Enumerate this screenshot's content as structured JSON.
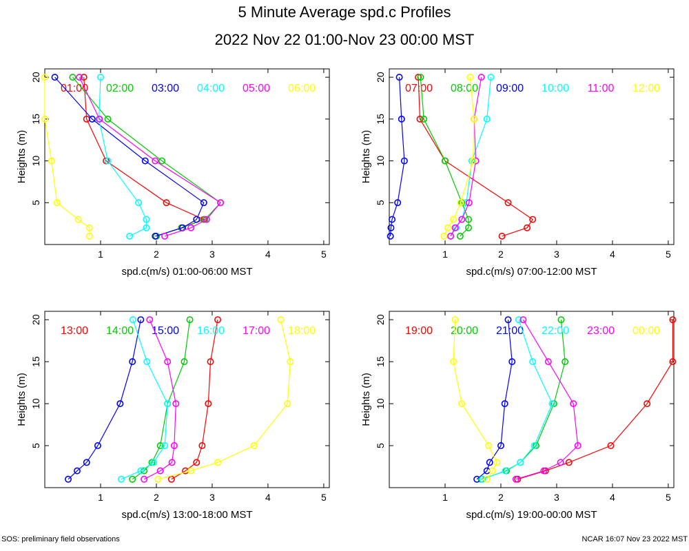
{
  "title": "5 Minute Average spd.c Profiles",
  "subtitle": "2022 Nov 22 01:00-Nov 23 00:00 MST",
  "footer_left": "SOS: preliminary field observations",
  "footer_right": "NCAR 16:07 Nov 23 2022 MST",
  "chart_data": [
    {
      "type": "line",
      "xlabel": "spd.c(m/s) 01:00-06:00 MST",
      "ylabel": "Heights (m)",
      "xlim": [
        0,
        5.1
      ],
      "ylim": [
        0,
        21
      ],
      "xticks": [
        "1",
        "2",
        "3",
        "4",
        "5"
      ],
      "yticks": [
        "5",
        "10",
        "15",
        "20"
      ],
      "heights": [
        1,
        2,
        3,
        5,
        10,
        15,
        20
      ],
      "series": [
        {
          "name": "01:00",
          "color": "#ff0000",
          "values": [
            2.0,
            2.45,
            2.85,
            2.18,
            1.1,
            0.75,
            0.7
          ]
        },
        {
          "name": "02:00",
          "color": "#00cc00",
          "values": [
            2.0,
            2.45,
            2.87,
            3.15,
            2.1,
            1.13,
            0.5
          ]
        },
        {
          "name": "03:00",
          "color": "#0000ff",
          "values": [
            1.98,
            2.47,
            2.72,
            2.85,
            1.8,
            0.85,
            0.18
          ]
        },
        {
          "name": "04:00",
          "color": "#00ffff",
          "values": [
            1.52,
            1.82,
            1.82,
            1.68,
            1.13,
            0.97,
            1.0
          ]
        },
        {
          "name": "05:00",
          "color": "#ff00ff",
          "values": [
            2.15,
            2.62,
            2.9,
            3.15,
            1.98,
            0.98,
            0.62
          ]
        },
        {
          "name": "06:00",
          "color": "#ffff00",
          "values": [
            0.8,
            0.8,
            0.6,
            0.22,
            0.12,
            0.0,
            0.0
          ]
        }
      ]
    },
    {
      "type": "line",
      "xlabel": "spd.c(m/s) 07:00-12:00 MST",
      "ylabel": "Heights (m)",
      "xlim": [
        0,
        5.1
      ],
      "ylim": [
        0,
        21
      ],
      "xticks": [
        "1",
        "2",
        "3",
        "4",
        "5"
      ],
      "yticks": [
        "5",
        "10",
        "15",
        "20"
      ],
      "heights": [
        1,
        2,
        3,
        5,
        10,
        15,
        20
      ],
      "series": [
        {
          "name": "07:00",
          "color": "#ff0000",
          "values": [
            2.02,
            2.47,
            2.57,
            2.13,
            1.0,
            0.55,
            0.52
          ]
        },
        {
          "name": "08:00",
          "color": "#00cc00",
          "values": [
            1.27,
            1.42,
            1.42,
            1.3,
            1.0,
            0.62,
            0.56
          ]
        },
        {
          "name": "09:00",
          "color": "#0000ff",
          "values": [
            0.02,
            0.03,
            0.05,
            0.15,
            0.27,
            0.22,
            0.18
          ]
        },
        {
          "name": "10:00",
          "color": "#00ffff",
          "values": [
            1.1,
            1.2,
            1.3,
            1.38,
            1.48,
            1.75,
            1.82
          ]
        },
        {
          "name": "11:00",
          "color": "#ff00ff",
          "values": [
            1.1,
            1.18,
            1.3,
            1.43,
            1.55,
            1.52,
            1.65
          ]
        },
        {
          "name": "12:00",
          "color": "#ffff00",
          "values": [
            0.98,
            1.05,
            1.15,
            1.28,
            1.5,
            1.52,
            1.45
          ]
        }
      ]
    },
    {
      "type": "line",
      "xlabel": "spd.c(m/s) 13:00-18:00 MST",
      "ylabel": "Heights (m)",
      "xlim": [
        0,
        5.1
      ],
      "ylim": [
        0,
        21
      ],
      "xticks": [
        "1",
        "2",
        "3",
        "4",
        "5"
      ],
      "yticks": [
        "5",
        "10",
        "15",
        "20"
      ],
      "heights": [
        1,
        2,
        3,
        5,
        10,
        15,
        20
      ],
      "series": [
        {
          "name": "13:00",
          "color": "#ff0000",
          "values": [
            2.27,
            2.52,
            2.72,
            2.82,
            2.93,
            2.97,
            3.1
          ]
        },
        {
          "name": "14:00",
          "color": "#00cc00",
          "values": [
            1.57,
            1.78,
            1.92,
            2.07,
            2.2,
            2.5,
            2.6
          ]
        },
        {
          "name": "15:00",
          "color": "#0000ff",
          "values": [
            0.42,
            0.58,
            0.75,
            0.95,
            1.35,
            1.57,
            1.72
          ]
        },
        {
          "name": "16:00",
          "color": "#00ffff",
          "values": [
            1.37,
            1.72,
            1.95,
            2.15,
            2.2,
            1.83,
            1.58
          ]
        },
        {
          "name": "17:00",
          "color": "#ff00ff",
          "values": [
            1.78,
            2.07,
            2.28,
            2.32,
            2.35,
            2.2,
            1.88
          ]
        },
        {
          "name": "18:00",
          "color": "#ffff00",
          "values": [
            2.03,
            2.62,
            3.1,
            3.75,
            4.35,
            4.4,
            4.23
          ]
        }
      ]
    },
    {
      "type": "line",
      "xlabel": "spd.c(m/s) 19:00-00:00 MST",
      "ylabel": "Heights (m)",
      "xlim": [
        0,
        5.1
      ],
      "ylim": [
        0,
        21
      ],
      "xticks": [
        "1",
        "2",
        "3",
        "4",
        "5"
      ],
      "yticks": [
        "5",
        "10",
        "15",
        "20"
      ],
      "heights": [
        1,
        2,
        3,
        5,
        10,
        15,
        20
      ],
      "series": [
        {
          "name": "19:00",
          "color": "#ff0000",
          "values": [
            2.3,
            2.8,
            3.22,
            3.97,
            4.62,
            5.08,
            5.08
          ]
        },
        {
          "name": "20:00",
          "color": "#00cc00",
          "values": [
            1.65,
            2.1,
            2.35,
            2.63,
            2.95,
            3.15,
            3.08
          ]
        },
        {
          "name": "21:00",
          "color": "#0000ff",
          "values": [
            1.57,
            1.75,
            1.8,
            2.0,
            2.07,
            2.2,
            2.13
          ]
        },
        {
          "name": "22:00",
          "color": "#00ffff",
          "values": [
            1.67,
            2.08,
            2.35,
            2.6,
            2.92,
            2.57,
            2.32
          ]
        },
        {
          "name": "23:00",
          "color": "#ff00ff",
          "values": [
            2.27,
            2.77,
            3.07,
            3.38,
            3.3,
            2.85,
            2.4
          ]
        },
        {
          "name": "00:00",
          "color": "#ffff00",
          "values": [
            1.75,
            1.85,
            1.93,
            1.78,
            1.3,
            1.15,
            1.18
          ]
        }
      ]
    }
  ]
}
